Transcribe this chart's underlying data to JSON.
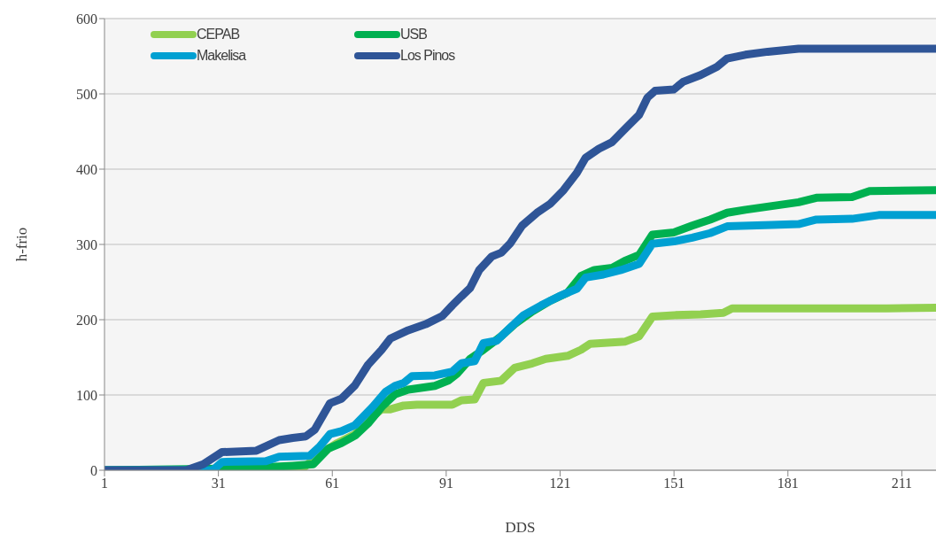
{
  "chart_data": {
    "type": "line",
    "xlabel": "DDS",
    "ylabel": "h-frio",
    "xlim": [
      1,
      220
    ],
    "xticks": [
      1,
      31,
      61,
      91,
      121,
      151,
      181,
      211
    ],
    "ylim": [
      0,
      600
    ],
    "yticks": [
      0,
      100,
      200,
      300,
      400,
      500,
      600
    ],
    "grid": "y",
    "legend": "top left",
    "marker": "none",
    "line_style": "solid",
    "series": [
      {
        "name": "CEPAB",
        "color": "#92d050",
        "x": [
          1,
          52.9,
          57.6,
          62.3,
          67,
          70.4,
          74,
          76.3,
          79.8,
          83.3,
          92.6,
          95,
          98.5,
          100.8,
          105.5,
          109,
          113.7,
          117.2,
          123,
          126.5,
          128.9,
          138.2,
          141.8,
          145.3,
          151,
          158,
          164,
          166.3,
          207,
          220
        ],
        "values": [
          0,
          1,
          21,
          36,
          48,
          66,
          81,
          81,
          86,
          87,
          87,
          93,
          94,
          116,
          119,
          136,
          142,
          148,
          152,
          160,
          168,
          171,
          178,
          204,
          206,
          207,
          209,
          215,
          215,
          216
        ]
      },
      {
        "name": "USB",
        "color": "#00b050",
        "x": [
          1,
          31.9,
          43.5,
          50.6,
          56,
          60,
          63.4,
          67,
          70.4,
          74,
          77.5,
          81,
          88,
          91.5,
          93.8,
          97.3,
          100.8,
          105.5,
          109,
          113.7,
          118.4,
          123,
          126.5,
          130,
          134.7,
          138,
          141.8,
          145.3,
          151,
          155.8,
          160.5,
          165,
          169.8,
          176.8,
          183.8,
          188.5,
          197.9,
          202.5,
          220
        ],
        "values": [
          0,
          2,
          4,
          6,
          8,
          29,
          36,
          46,
          62,
          84,
          101,
          107,
          112,
          119,
          128,
          148,
          160,
          178,
          194,
          211,
          225,
          236,
          258,
          266,
          269,
          278,
          286,
          313,
          316,
          325,
          333,
          342,
          346,
          351,
          356,
          362,
          363,
          371,
          372
        ]
      },
      {
        "name": "Makelisa",
        "color": "#00a0d2",
        "x": [
          1,
          29.5,
          32,
          43.5,
          47,
          55,
          57.6,
          60.4,
          63.4,
          67,
          71.6,
          75,
          77.5,
          79.8,
          82,
          88,
          92.6,
          95,
          98.5,
          100.8,
          104.3,
          107.8,
          111.4,
          116,
          120.7,
          125.4,
          127.7,
          132.4,
          137,
          141.8,
          145.3,
          151,
          155.8,
          160.5,
          165,
          176.8,
          183.8,
          188.5,
          197.9,
          204.9,
          220
        ],
        "values": [
          0,
          0,
          11,
          12,
          18,
          19,
          31,
          48,
          52,
          60,
          84,
          104,
          112,
          116,
          125,
          126,
          131,
          142,
          145,
          169,
          172,
          189,
          206,
          219,
          231,
          241,
          256,
          260,
          266,
          274,
          301,
          304,
          309,
          315,
          324,
          326,
          327,
          333,
          334,
          339,
          339
        ]
      },
      {
        "name": "Los Pinos",
        "color": "#2f5597",
        "x": [
          1,
          22.5,
          27,
          31.9,
          41,
          47,
          50.6,
          54,
          56.4,
          60.4,
          63.4,
          67,
          70.4,
          74,
          76.3,
          81,
          85.6,
          90,
          92.6,
          95,
          97.3,
          99.7,
          103,
          105.5,
          107.8,
          111,
          114.9,
          118.4,
          121.9,
          125.4,
          127.7,
          131.2,
          134.7,
          138.2,
          141.8,
          144,
          146,
          151,
          153.4,
          158,
          162.3,
          165,
          169.8,
          175.7,
          183.8,
          220
        ],
        "values": [
          0,
          0,
          8,
          24,
          26,
          40,
          43,
          45,
          54,
          89,
          95,
          113,
          140,
          160,
          175,
          186,
          194,
          205,
          219,
          231,
          242,
          266,
          284,
          289,
          301,
          325,
          342,
          354,
          372,
          395,
          415,
          427,
          436,
          454,
          472,
          495,
          504,
          506,
          516,
          525,
          536,
          547,
          552,
          556,
          560,
          560
        ]
      }
    ]
  }
}
